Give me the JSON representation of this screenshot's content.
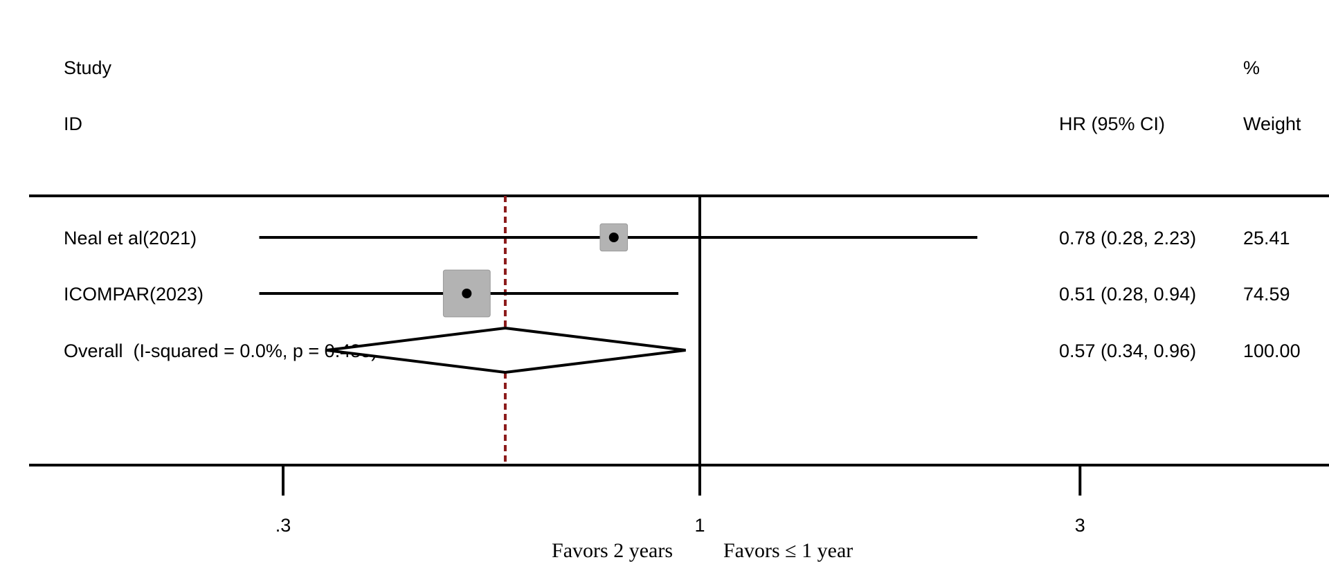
{
  "header": {
    "study_line1": "Study",
    "study_line2": "ID",
    "hr_label": "HR (95% CI)",
    "weight_line1": "%",
    "weight_line2": "Weight"
  },
  "footer": {
    "favors_left": "Favors 2 years",
    "favors_right": "Favors ≤ 1 year"
  },
  "colors": {
    "line": "#000000",
    "box_fill": "#b3b3b3",
    "box_stroke": "#999999",
    "overall_line": "#8b1a1a"
  },
  "chart_data": {
    "type": "forest",
    "scale": "log",
    "xlim": [
      0.2,
      4.4
    ],
    "x_ticks": [
      {
        "value": 0.3,
        "label": ".3"
      },
      {
        "value": 1,
        "label": "1"
      },
      {
        "value": 3,
        "label": "3"
      }
    ],
    "null_line": 1,
    "overall_line": 0.57,
    "studies": [
      {
        "label": "Neal et al(2021)",
        "hr": 0.78,
        "lo": 0.28,
        "hi": 2.23,
        "hr_text": "0.78 (0.28, 2.23)",
        "weight": 25.41,
        "weight_text": "25.41"
      },
      {
        "label": "ICOMPAR(2023)",
        "hr": 0.51,
        "lo": 0.28,
        "hi": 0.94,
        "hr_text": "0.51 (0.28, 0.94)",
        "weight": 74.59,
        "weight_text": "74.59"
      }
    ],
    "overall": {
      "label": "Overall  (I-squared = 0.0%, p = 0.488)",
      "hr": 0.57,
      "lo": 0.34,
      "hi": 0.96,
      "hr_text": "0.57 (0.34, 0.96)",
      "weight_text": "100.00"
    }
  }
}
